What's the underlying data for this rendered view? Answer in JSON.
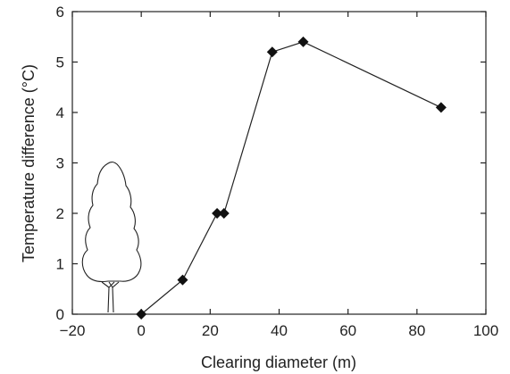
{
  "chart_data": {
    "type": "line",
    "title": "",
    "xlabel": "Clearing diameter (m)",
    "ylabel": "Temperature difference (°C)",
    "xlim": [
      -20,
      100
    ],
    "ylim": [
      0,
      6
    ],
    "xticks": [
      -20,
      0,
      20,
      40,
      60,
      80,
      100
    ],
    "yticks": [
      0,
      1,
      2,
      3,
      4,
      5,
      6
    ],
    "xtick_labels": [
      "−20",
      "0",
      "20",
      "40",
      "60",
      "80",
      "100"
    ],
    "ytick_labels": [
      "0",
      "1",
      "2",
      "3",
      "4",
      "5",
      "6"
    ],
    "grid": false,
    "marker": "diamond",
    "series": [
      {
        "x": [
          0,
          12,
          22,
          24,
          38,
          47,
          87
        ],
        "y": [
          0,
          0.68,
          2.0,
          2.0,
          5.2,
          5.4,
          4.1
        ]
      }
    ],
    "colors": {
      "line": "#222222",
      "marker": "#111111"
    }
  }
}
